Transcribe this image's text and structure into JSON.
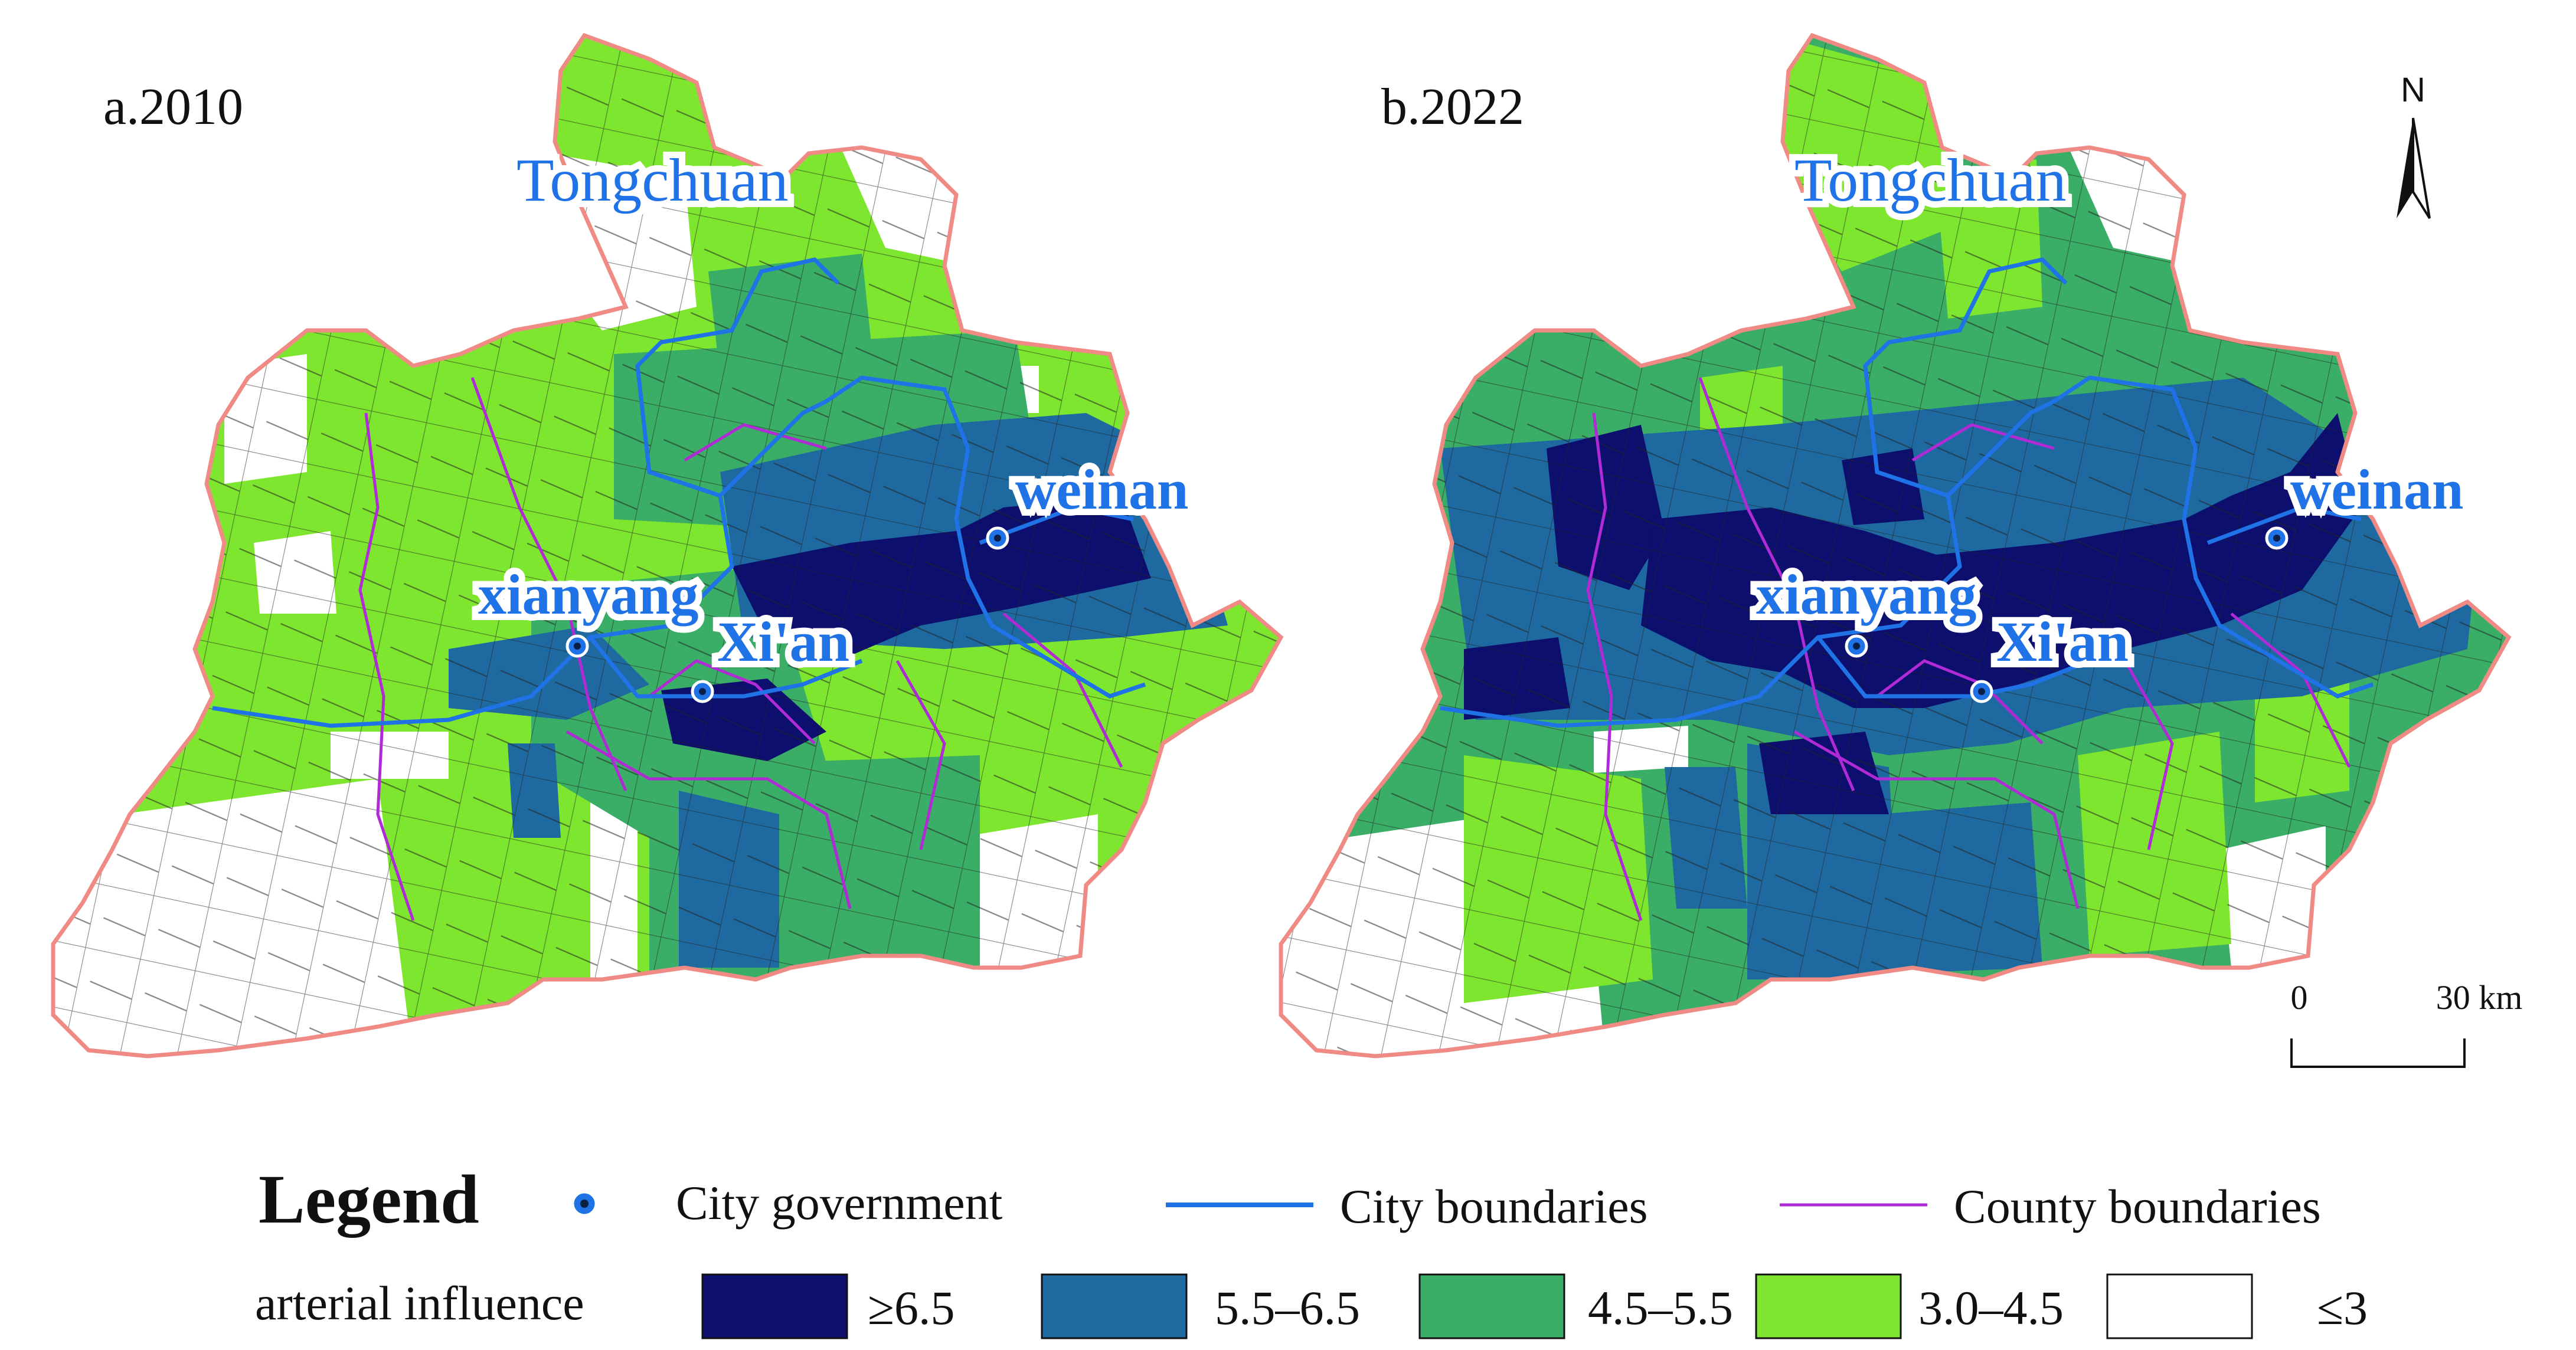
{
  "panels": [
    {
      "label": "a.2010",
      "cities": {
        "tongchuan": "Tongchuan",
        "xianyang": "xianyang",
        "xian": "Xi'an",
        "weinan": "weinan"
      }
    },
    {
      "label": "b.2022",
      "cities": {
        "tongchuan": "Tongchuan",
        "xianyang": "xianyang",
        "xian": "Xi'an",
        "weinan": "weinan"
      }
    }
  ],
  "north": "N",
  "scale": {
    "start": "0",
    "end": "30 km"
  },
  "legend": {
    "title": "Legend",
    "city_government": "City government",
    "city_boundaries": "City boundaries",
    "county_boundaries": "County boundaries",
    "variable": "arterial influence",
    "classes": [
      {
        "label": "≥6.5",
        "color": "#0d0f6e"
      },
      {
        "label": "5.5–6.5",
        "color": "#1e6aa0"
      },
      {
        "label": "4.5–5.5",
        "color": "#3aae66"
      },
      {
        "label": "3.0–4.5",
        "color": "#7ee62e"
      },
      {
        "label": "≤3",
        "color": "#ffffff"
      }
    ]
  },
  "colors": {
    "region_outline": "#f08a84",
    "city_boundary": "#1f73e6",
    "county_boundary": "#b02ad6",
    "city_marker": "#1f73e6"
  }
}
